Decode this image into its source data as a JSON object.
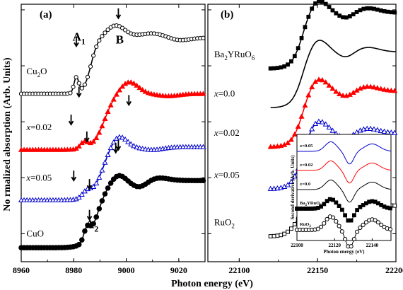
{
  "chart_data": [
    {
      "type": "line",
      "panel_label": "(a)",
      "xlabel": "",
      "ylabel": "No rmalized absorption (Arb. Units)",
      "xlim": [
        8960,
        9030
      ],
      "xticks": [
        8960,
        8980,
        9000,
        9020
      ],
      "ylim": [
        0,
        4.6
      ],
      "series": [
        {
          "name": "Cu2O",
          "label": "Cu$_2$O",
          "color": "#000000",
          "marker": "open-circle",
          "offset": 3.0,
          "edge": 8988,
          "shape": "cu2o"
        },
        {
          "name": "x=0.02",
          "label": "x=0.02",
          "color": "#ff0000",
          "marker": "filled-triangle",
          "offset": 2.0,
          "edge": 8993,
          "shape": "dop2"
        },
        {
          "name": "x=0.05",
          "label": "x=0.05",
          "color": "#0000cc",
          "marker": "open-triangle",
          "offset": 1.1,
          "edge": 8993,
          "shape": "dop5"
        },
        {
          "name": "CuO",
          "label": "CuO",
          "color": "#000000",
          "marker": "filled-circle",
          "offset": 0.25,
          "edge": 8990,
          "shape": "cuo"
        }
      ],
      "annotations": [
        {
          "text": "A1",
          "label": "A$_1$",
          "x": 8982
        },
        {
          "text": "B",
          "label": "B",
          "x": 8997
        },
        {
          "text": "A2",
          "label": "A$_2$",
          "x": 8986
        }
      ],
      "arrows_x": [
        8981,
        8997,
        8984,
        9001,
        8979,
        8985,
        8996,
        8980,
        8986,
        8997,
        8986
      ]
    },
    {
      "type": "line",
      "panel_label": "(b)",
      "xlabel": "Photon energy (eV)",
      "ylabel": "",
      "xlim": [
        22080,
        22200
      ],
      "xticks": [
        22100,
        22150,
        22200
      ],
      "ylim": [
        0,
        4.6
      ],
      "series": [
        {
          "name": "Ba2YRuO6",
          "label": "Ba$_2$YRuO$_6$",
          "color": "#000000",
          "marker": "filled-square",
          "offset": 3.45
        },
        {
          "name": "x=0.0",
          "label": "x=0.0",
          "color": "#000000",
          "marker": "none",
          "offset": 2.75
        },
        {
          "name": "x=0.02",
          "label": "x=0.02",
          "color": "#ff0000",
          "marker": "filled-triangle",
          "offset": 2.05
        },
        {
          "name": "x=0.05",
          "label": "x=0.05",
          "color": "#0000cc",
          "marker": "open-triangle",
          "offset": 1.3
        },
        {
          "name": "RuO2",
          "label": "RuO$_2$",
          "color": "#000000",
          "marker": "open-square",
          "offset": 0.45
        }
      ]
    },
    {
      "type": "line",
      "panel_label": "inset",
      "xlabel": "Photon energy (eV)",
      "ylabel": "Second derivative (Arb. Units)",
      "xlim": [
        22100,
        22150
      ],
      "xticks": [
        22100,
        22120,
        22140
      ],
      "series": [
        {
          "name": "x=0.05",
          "label": "x=0.05",
          "color": "#0000cc",
          "marker": "none",
          "offset": 4.2
        },
        {
          "name": "x=0.02",
          "label": "x=0.02",
          "color": "#ff0000",
          "marker": "none",
          "offset": 3.3
        },
        {
          "name": "x=0.0",
          "label": "x=0.0",
          "color": "#000000",
          "marker": "none",
          "offset": 2.4
        },
        {
          "name": "Ba2YRuO6",
          "label": "Ba$_2$YRuO$_6$",
          "color": "#000000",
          "marker": "filled-square",
          "offset": 1.5
        },
        {
          "name": "RuO2",
          "label": "RuO$_2$",
          "color": "#000000",
          "marker": "open-circle",
          "offset": 0.5
        }
      ]
    }
  ]
}
